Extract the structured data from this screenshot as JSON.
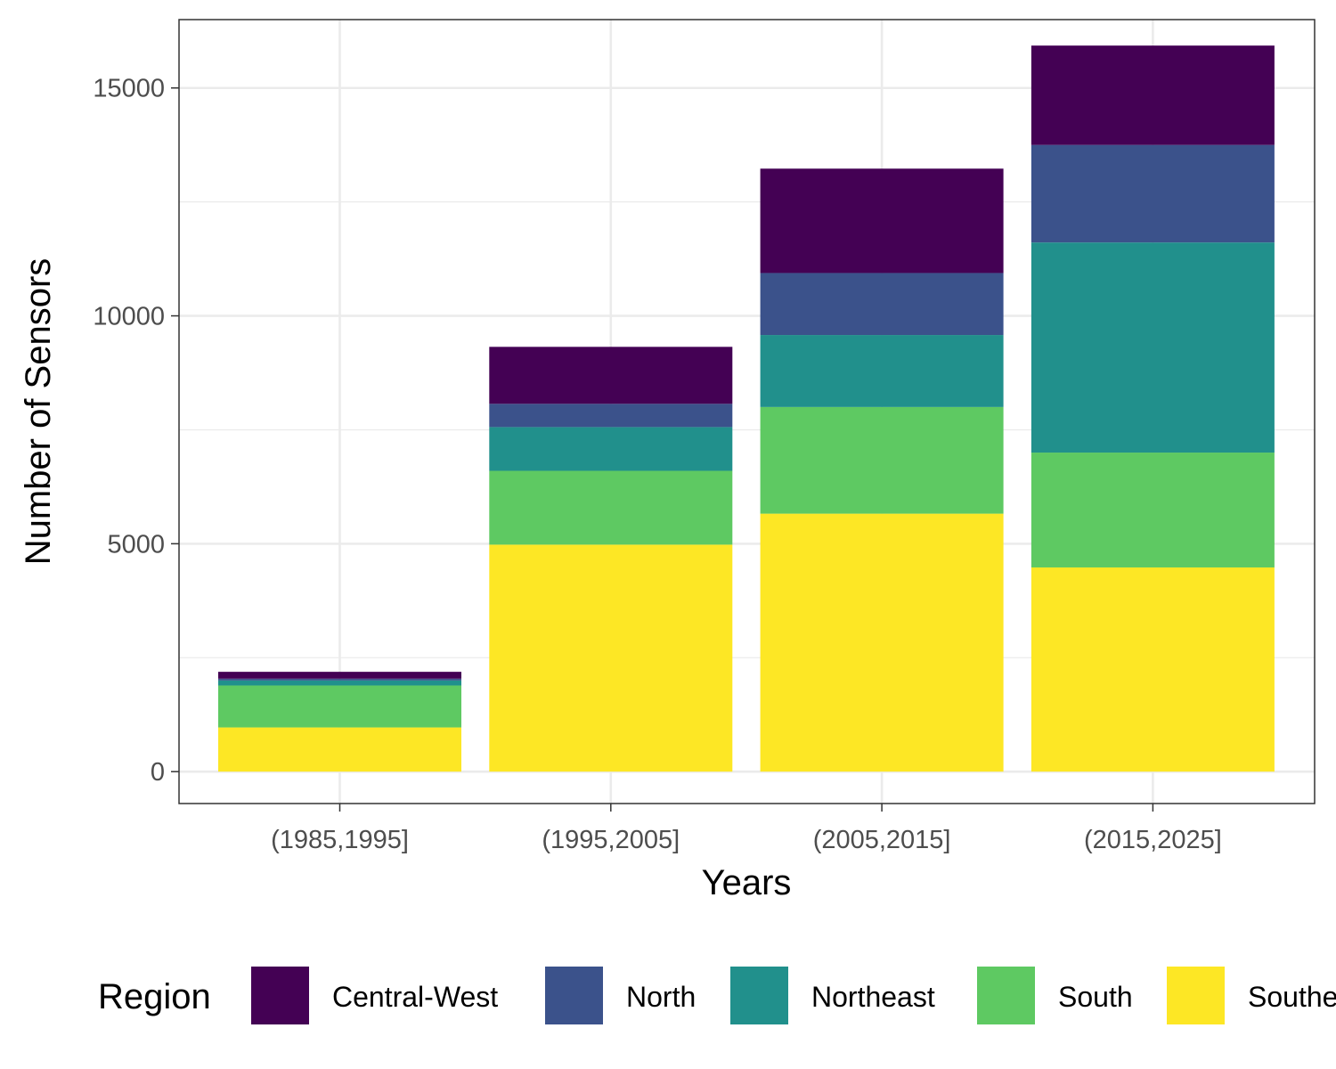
{
  "chart_data": {
    "type": "bar",
    "stacked": true,
    "categories": [
      "(1985,1995]",
      "(1995,2005]",
      "(2005,2015]",
      "(2015,2025]"
    ],
    "xlabel": "Years",
    "ylabel": "Number of Sensors",
    "ylim": [
      -700,
      16500
    ],
    "yticks": [
      0,
      5000,
      10000,
      15000
    ],
    "grid": true,
    "legend": {
      "title": "Region",
      "position": "bottom",
      "labels": [
        "Central-West",
        "North",
        "Northeast",
        "South",
        "Southeast"
      ]
    },
    "series": [
      {
        "name": "Southeast",
        "color": "#FDE725",
        "values": [
          970,
          4980,
          5660,
          4480
        ]
      },
      {
        "name": "South",
        "color": "#5EC962",
        "values": [
          920,
          1620,
          2340,
          2520
        ]
      },
      {
        "name": "Northeast",
        "color": "#21908C",
        "values": [
          110,
          960,
          1580,
          4610
        ]
      },
      {
        "name": "North",
        "color": "#3B528B",
        "values": [
          40,
          510,
          1360,
          2140
        ]
      },
      {
        "name": "Central-West",
        "color": "#440154",
        "values": [
          150,
          1250,
          2290,
          2180
        ]
      }
    ]
  }
}
